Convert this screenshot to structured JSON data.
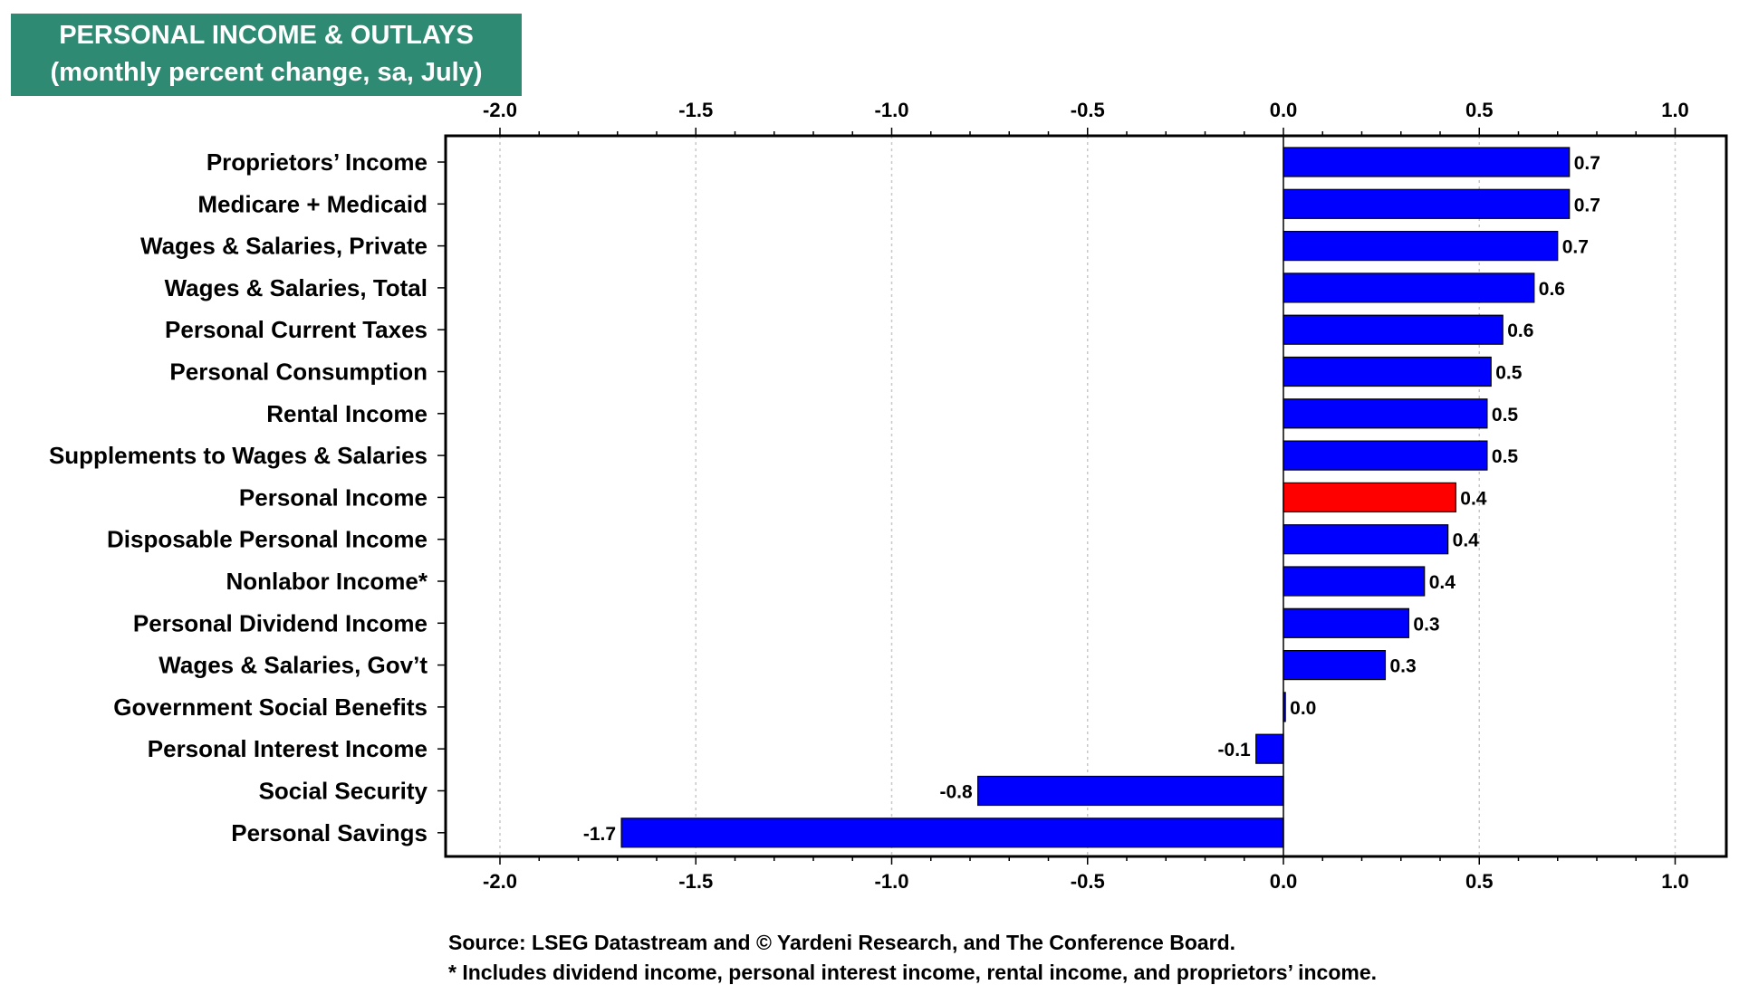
{
  "chart_data": {
    "type": "bar",
    "orientation": "horizontal",
    "title": "PERSONAL INCOME & OUTLAYS",
    "subtitle": "(monthly percent change, sa, July)",
    "categories": [
      "Proprietors’ Income",
      "Medicare + Medicaid",
      "Wages & Salaries, Private",
      "Wages & Salaries, Total",
      "Personal Current Taxes",
      "Personal Consumption",
      "Rental Income",
      "Supplements to Wages & Salaries",
      "Personal Income",
      "Disposable Personal Income",
      "Nonlabor Income*",
      "Personal Dividend Income",
      "Wages & Salaries, Gov’t",
      "Government Social Benefits",
      "Personal Interest Income",
      "Social Security",
      "Personal Savings"
    ],
    "values": [
      0.73,
      0.73,
      0.7,
      0.64,
      0.56,
      0.53,
      0.52,
      0.52,
      0.44,
      0.42,
      0.36,
      0.32,
      0.26,
      0.005,
      -0.07,
      -0.78,
      -1.69
    ],
    "data_labels": [
      "0.7",
      "0.7",
      "0.7",
      "0.6",
      "0.6",
      "0.5",
      "0.5",
      "0.5",
      "0.4",
      "0.4",
      "0.4",
      "0.3",
      "0.3",
      "0.0",
      "-0.1",
      "-0.8",
      "-1.7"
    ],
    "highlight": "Personal Income",
    "colors": {
      "bar": "#0000ff",
      "highlight": "#ff0000",
      "title_bg": "#2e8a73",
      "title_text": "#ffffff"
    },
    "xlim": [
      -2.0,
      1.0
    ],
    "xticks": [
      -2.0,
      -1.5,
      -1.0,
      -0.5,
      0.0,
      0.5,
      1.0
    ],
    "xtick_labels": [
      "-2.0",
      "-1.5",
      "-1.0",
      "-0.5",
      "0.0",
      "0.5",
      "1.0"
    ],
    "grid": true,
    "xlabel": "",
    "ylabel": ""
  },
  "footnotes": {
    "source": "Source: LSEG Datastream and © Yardeni Research, and The Conference Board.",
    "note": "* Includes dividend income, personal interest income, rental income, and proprietors’ income."
  }
}
